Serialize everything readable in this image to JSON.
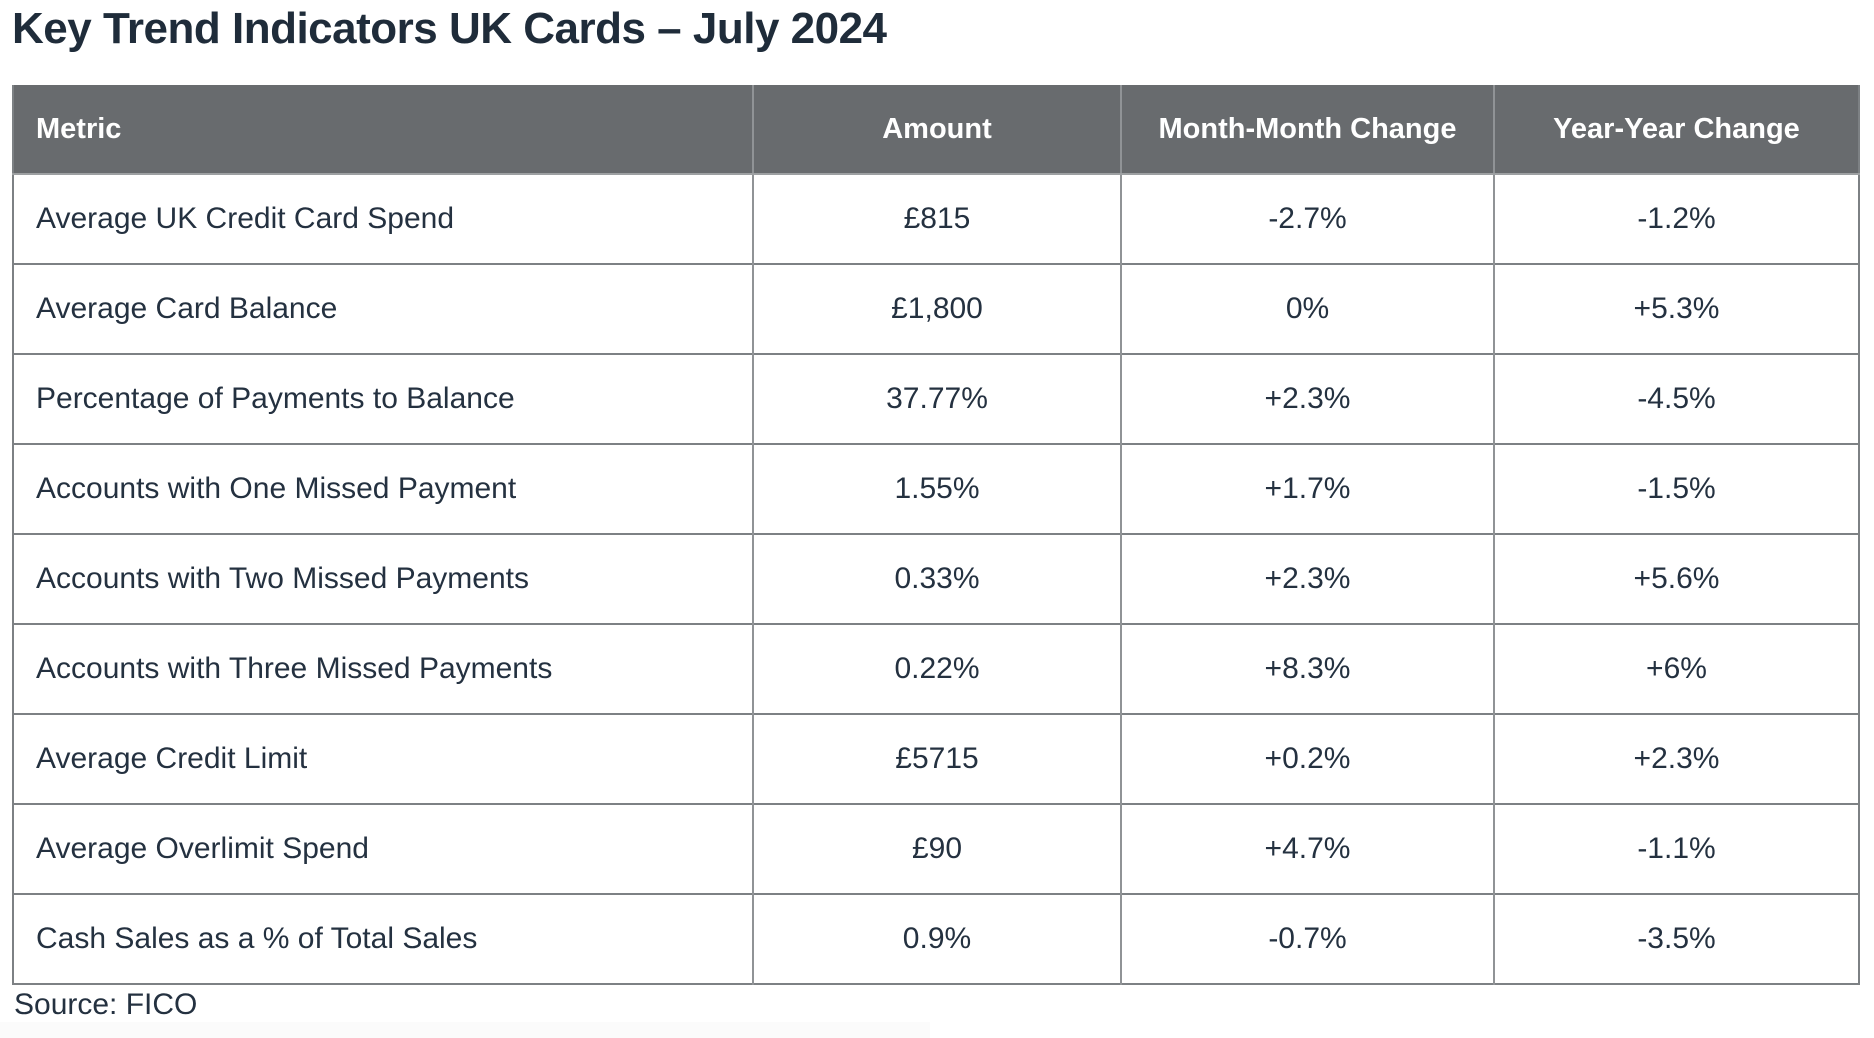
{
  "page": {
    "title": "Key Trend Indicators UK Cards – July 2024",
    "source": "Source: FICO"
  },
  "colors": {
    "title_text": "#1f2c3a",
    "header_bg": "#686b6e",
    "header_text": "#ffffff",
    "body_text": "#243140",
    "border_strong": "#7d8184",
    "border_light": "#909396",
    "background": "#ffffff"
  },
  "chart_data": {
    "type": "table",
    "title": "Key Trend Indicators UK Cards – July 2024",
    "columns": [
      "Metric",
      "Amount",
      "Month-Month Change",
      "Year-Year Change"
    ],
    "rows": [
      [
        "Average UK Credit Card Spend",
        "£815",
        "-2.7%",
        "-1.2%"
      ],
      [
        "Average Card Balance",
        "£1,800",
        "0%",
        "+5.3%"
      ],
      [
        "Percentage of Payments to Balance",
        "37.77%",
        "+2.3%",
        "-4.5%"
      ],
      [
        "Accounts with One Missed Payment",
        "1.55%",
        "+1.7%",
        "-1.5%"
      ],
      [
        "Accounts with Two Missed Payments",
        "0.33%",
        "+2.3%",
        "+5.6%"
      ],
      [
        "Accounts with Three Missed Payments",
        "0.22%",
        "+8.3%",
        "+6%"
      ],
      [
        "Average Credit Limit",
        "£5715",
        "+0.2%",
        "+2.3%"
      ],
      [
        "Average Overlimit Spend",
        "£90",
        "+4.7%",
        "-1.1%"
      ],
      [
        "Cash Sales as a % of Total Sales",
        "0.9%",
        "-0.7%",
        "-3.5%"
      ]
    ],
    "source": "Source: FICO"
  }
}
